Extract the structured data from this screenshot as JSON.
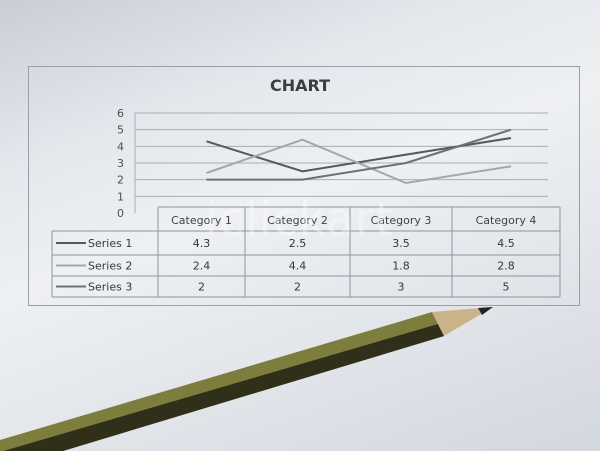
{
  "chart_data": {
    "type": "line",
    "title": "CHART",
    "categories": [
      "Category 1",
      "Category 2",
      "Category 3",
      "Category 4"
    ],
    "series": [
      {
        "name": "Series 1",
        "values": [
          4.3,
          2.5,
          3.5,
          4.5
        ],
        "color": "#55595f"
      },
      {
        "name": "Series 2",
        "values": [
          2.4,
          4.4,
          1.8,
          2.8
        ],
        "color": "#a3a7ad"
      },
      {
        "name": "Series 3",
        "values": [
          2,
          2,
          3,
          5
        ],
        "color": "#6c7076"
      }
    ],
    "ylim": [
      0,
      6
    ],
    "yticks": [
      "0",
      "1",
      "2",
      "3",
      "4",
      "5",
      "6"
    ],
    "grid": true,
    "legend": "data-table",
    "data_table": true
  },
  "watermark": "iclickart"
}
